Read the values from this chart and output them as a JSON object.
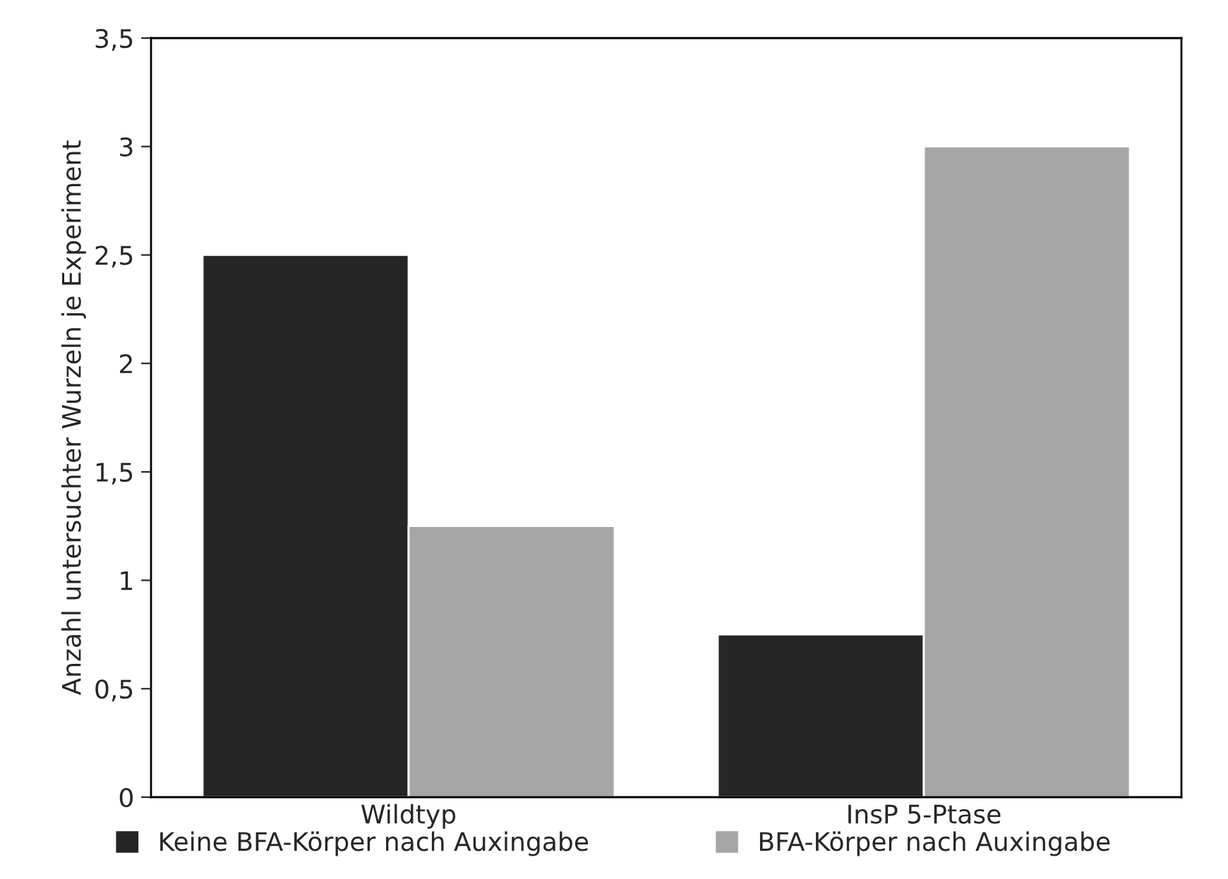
{
  "chart_data": {
    "type": "bar",
    "ylabel": "Anzahl untersuchter Wurzeln je Experiment",
    "categories": [
      "Wildtyp",
      "InsP 5-Ptase"
    ],
    "series": [
      {
        "name": "Keine BFA-Körper nach Auxingabe",
        "color": "#262626",
        "values": [
          2.5,
          0.75
        ]
      },
      {
        "name": "BFA-Körper nach Auxingabe",
        "color": "#a6a6a6",
        "values": [
          1.25,
          3
        ]
      }
    ],
    "ylim": [
      0,
      3.5
    ],
    "yticks": [
      0,
      {
        "value": 0.5,
        "label": "0,5"
      },
      1,
      {
        "value": 1.5,
        "label": "1,5"
      },
      2,
      {
        "value": 2.5,
        "label": "2,5"
      },
      3,
      {
        "value": 3.5,
        "label": "3,5"
      }
    ],
    "grid": false,
    "legend": "bottom"
  }
}
